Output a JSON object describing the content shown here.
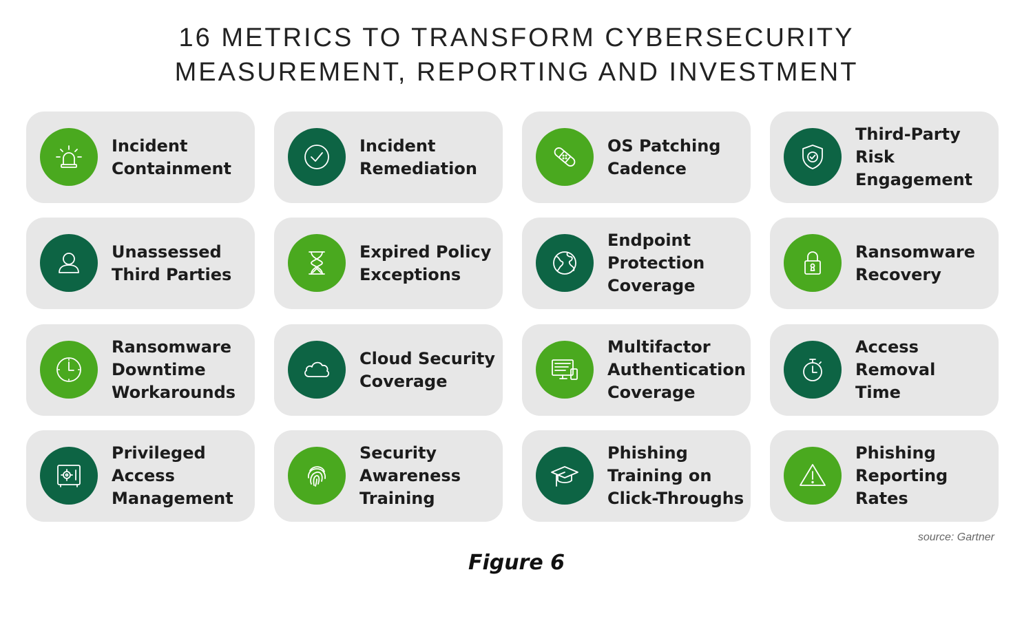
{
  "title": {
    "line1": "16 METRICS TO TRANSFORM CYBERSECURITY",
    "line2": "MEASUREMENT, REPORTING AND INVESTMENT"
  },
  "colors": {
    "light_green": "#4aa91f",
    "dark_green": "#0d6444",
    "card_bg": "#e7e7e7"
  },
  "metrics": [
    {
      "lines": [
        "Incident",
        "Containment"
      ],
      "icon": "alarm-light-icon"
    },
    {
      "lines": [
        "Incident",
        "Remediation"
      ],
      "icon": "check-circle-icon"
    },
    {
      "lines": [
        "OS Patching",
        "Cadence"
      ],
      "icon": "bandage-icon"
    },
    {
      "lines": [
        "Third-Party",
        "Risk",
        "Engagement"
      ],
      "icon": "shield-check-icon"
    },
    {
      "lines": [
        "Unassessed",
        "Third Parties"
      ],
      "icon": "user-icon"
    },
    {
      "lines": [
        "Expired Policy",
        "Exceptions"
      ],
      "icon": "hourglass-icon"
    },
    {
      "lines": [
        "Endpoint",
        "Protection",
        "Coverage"
      ],
      "icon": "globe-icon"
    },
    {
      "lines": [
        "Ransomware",
        "Recovery"
      ],
      "icon": "padlock-icon"
    },
    {
      "lines": [
        "Ransomware",
        "Downtime",
        "Workarounds"
      ],
      "icon": "clock-icon"
    },
    {
      "lines": [
        "Cloud Security",
        "Coverage"
      ],
      "icon": "cloud-icon"
    },
    {
      "lines": [
        "Multifactor",
        "Authentication",
        "Coverage"
      ],
      "icon": "monitor-phone-icon"
    },
    {
      "lines": [
        "Access",
        "Removal",
        "Time"
      ],
      "icon": "stopwatch-icon"
    },
    {
      "lines": [
        "Privileged",
        "Access",
        "Management"
      ],
      "icon": "vault-icon"
    },
    {
      "lines": [
        "Security",
        "Awareness",
        "Training"
      ],
      "icon": "fingerprint-icon"
    },
    {
      "lines": [
        "Phishing",
        "Training on",
        "Click-Throughs"
      ],
      "icon": "graduation-cap-icon"
    },
    {
      "lines": [
        "Phishing",
        "Reporting",
        "Rates"
      ],
      "icon": "warning-icon"
    }
  ],
  "source": "source: Gartner",
  "caption": "Figure 6"
}
